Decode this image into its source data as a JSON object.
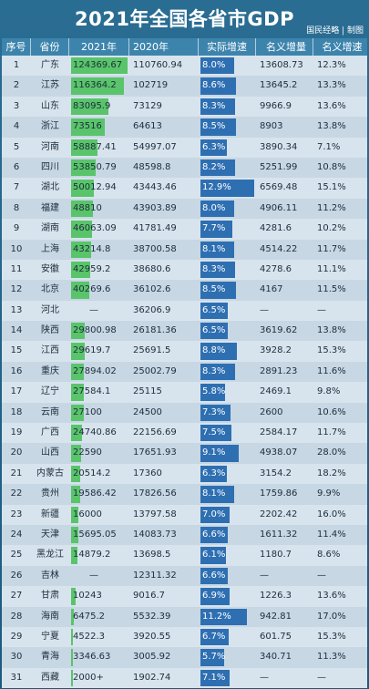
{
  "title": "2021年全国各省市GDP",
  "credit": "国民经略 | 制图",
  "headers": [
    "序号",
    "省份",
    "2021年",
    "2020年",
    "实际增速",
    "名义增量",
    "名义增速"
  ],
  "chart_data": {
    "type": "table",
    "title": "2021年全国各省市GDP",
    "columns": [
      "序号",
      "省份",
      "2021年",
      "2020年",
      "实际增速",
      "名义增量",
      "名义增速"
    ],
    "rows": [
      {
        "rank": "1",
        "province": "广东",
        "y2021": "124369.67",
        "y2020": "110760.94",
        "real": "8.0%",
        "nom_inc": "13608.73",
        "nom_rate": "12.3%",
        "v21": 124369.67,
        "rate": 8.0
      },
      {
        "rank": "2",
        "province": "江苏",
        "y2021": "116364.2",
        "y2020": "102719",
        "real": "8.6%",
        "nom_inc": "13645.2",
        "nom_rate": "13.3%",
        "v21": 116364.2,
        "rate": 8.6
      },
      {
        "rank": "3",
        "province": "山东",
        "y2021": "83095.9",
        "y2020": "73129",
        "real": "8.3%",
        "nom_inc": "9966.9",
        "nom_rate": "13.6%",
        "v21": 83095.9,
        "rate": 8.3
      },
      {
        "rank": "4",
        "province": "浙江",
        "y2021": "73516",
        "y2020": "64613",
        "real": "8.5%",
        "nom_inc": "8903",
        "nom_rate": "13.8%",
        "v21": 73516,
        "rate": 8.5
      },
      {
        "rank": "5",
        "province": "河南",
        "y2021": "58887.41",
        "y2020": "54997.07",
        "real": "6.3%",
        "nom_inc": "3890.34",
        "nom_rate": "7.1%",
        "v21": 58887.41,
        "rate": 6.3
      },
      {
        "rank": "6",
        "province": "四川",
        "y2021": "53850.79",
        "y2020": "48598.8",
        "real": "8.2%",
        "nom_inc": "5251.99",
        "nom_rate": "10.8%",
        "v21": 53850.79,
        "rate": 8.2
      },
      {
        "rank": "7",
        "province": "湖北",
        "y2021": "50012.94",
        "y2020": "43443.46",
        "real": "12.9%",
        "nom_inc": "6569.48",
        "nom_rate": "15.1%",
        "v21": 50012.94,
        "rate": 12.9
      },
      {
        "rank": "8",
        "province": "福建",
        "y2021": "48810",
        "y2020": "43903.89",
        "real": "8.0%",
        "nom_inc": "4906.11",
        "nom_rate": "11.2%",
        "v21": 48810,
        "rate": 8.0
      },
      {
        "rank": "9",
        "province": "湖南",
        "y2021": "46063.09",
        "y2020": "41781.49",
        "real": "7.7%",
        "nom_inc": "4281.6",
        "nom_rate": "10.2%",
        "v21": 46063.09,
        "rate": 7.7
      },
      {
        "rank": "10",
        "province": "上海",
        "y2021": "43214.8",
        "y2020": "38700.58",
        "real": "8.1%",
        "nom_inc": "4514.22",
        "nom_rate": "11.7%",
        "v21": 43214.8,
        "rate": 8.1
      },
      {
        "rank": "11",
        "province": "安徽",
        "y2021": "42959.2",
        "y2020": "38680.6",
        "real": "8.3%",
        "nom_inc": "4278.6",
        "nom_rate": "11.1%",
        "v21": 42959.2,
        "rate": 8.3
      },
      {
        "rank": "12",
        "province": "北京",
        "y2021": "40269.6",
        "y2020": "36102.6",
        "real": "8.5%",
        "nom_inc": "4167",
        "nom_rate": "11.5%",
        "v21": 40269.6,
        "rate": 8.5
      },
      {
        "rank": "13",
        "province": "河北",
        "y2021": "—",
        "y2020": "36206.9",
        "real": "6.5%",
        "nom_inc": "—",
        "nom_rate": "—",
        "v21": null,
        "rate": 6.5
      },
      {
        "rank": "14",
        "province": "陕西",
        "y2021": "29800.98",
        "y2020": "26181.36",
        "real": "6.5%",
        "nom_inc": "3619.62",
        "nom_rate": "13.8%",
        "v21": 29800.98,
        "rate": 6.5
      },
      {
        "rank": "15",
        "province": "江西",
        "y2021": "29619.7",
        "y2020": "25691.5",
        "real": "8.8%",
        "nom_inc": "3928.2",
        "nom_rate": "15.3%",
        "v21": 29619.7,
        "rate": 8.8
      },
      {
        "rank": "16",
        "province": "重庆",
        "y2021": "27894.02",
        "y2020": "25002.79",
        "real": "8.3%",
        "nom_inc": "2891.23",
        "nom_rate": "11.6%",
        "v21": 27894.02,
        "rate": 8.3
      },
      {
        "rank": "17",
        "province": "辽宁",
        "y2021": "27584.1",
        "y2020": "25115",
        "real": "5.8%",
        "nom_inc": "2469.1",
        "nom_rate": "9.8%",
        "v21": 27584.1,
        "rate": 5.8
      },
      {
        "rank": "18",
        "province": "云南",
        "y2021": "27100",
        "y2020": "24500",
        "real": "7.3%",
        "nom_inc": "2600",
        "nom_rate": "10.6%",
        "v21": 27100,
        "rate": 7.3
      },
      {
        "rank": "19",
        "province": "广西",
        "y2021": "24740.86",
        "y2020": "22156.69",
        "real": "7.5%",
        "nom_inc": "2584.17",
        "nom_rate": "11.7%",
        "v21": 24740.86,
        "rate": 7.5
      },
      {
        "rank": "20",
        "province": "山西",
        "y2021": "22590",
        "y2020": "17651.93",
        "real": "9.1%",
        "nom_inc": "4938.07",
        "nom_rate": "28.0%",
        "v21": 22590,
        "rate": 9.1
      },
      {
        "rank": "21",
        "province": "内蒙古",
        "y2021": "20514.2",
        "y2020": "17360",
        "real": "6.3%",
        "nom_inc": "3154.2",
        "nom_rate": "18.2%",
        "v21": 20514.2,
        "rate": 6.3
      },
      {
        "rank": "22",
        "province": "贵州",
        "y2021": "19586.42",
        "y2020": "17826.56",
        "real": "8.1%",
        "nom_inc": "1759.86",
        "nom_rate": "9.9%",
        "v21": 19586.42,
        "rate": 8.1
      },
      {
        "rank": "23",
        "province": "新疆",
        "y2021": "16000",
        "y2020": "13797.58",
        "real": "7.0%",
        "nom_inc": "2202.42",
        "nom_rate": "16.0%",
        "v21": 16000,
        "rate": 7.0
      },
      {
        "rank": "24",
        "province": "天津",
        "y2021": "15695.05",
        "y2020": "14083.73",
        "real": "6.6%",
        "nom_inc": "1611.32",
        "nom_rate": "11.4%",
        "v21": 15695.05,
        "rate": 6.6
      },
      {
        "rank": "25",
        "province": "黑龙江",
        "y2021": "14879.2",
        "y2020": "13698.5",
        "real": "6.1%",
        "nom_inc": "1180.7",
        "nom_rate": "8.6%",
        "v21": 14879.2,
        "rate": 6.1
      },
      {
        "rank": "26",
        "province": "吉林",
        "y2021": "—",
        "y2020": "12311.32",
        "real": "6.6%",
        "nom_inc": "—",
        "nom_rate": "—",
        "v21": null,
        "rate": 6.6
      },
      {
        "rank": "27",
        "province": "甘肃",
        "y2021": "10243",
        "y2020": "9016.7",
        "real": "6.9%",
        "nom_inc": "1226.3",
        "nom_rate": "13.6%",
        "v21": 10243,
        "rate": 6.9
      },
      {
        "rank": "28",
        "province": "海南",
        "y2021": "6475.2",
        "y2020": "5532.39",
        "real": "11.2%",
        "nom_inc": "942.81",
        "nom_rate": "17.0%",
        "v21": 6475.2,
        "rate": 11.2
      },
      {
        "rank": "29",
        "province": "宁夏",
        "y2021": "4522.3",
        "y2020": "3920.55",
        "real": "6.7%",
        "nom_inc": "601.75",
        "nom_rate": "15.3%",
        "v21": 4522.3,
        "rate": 6.7
      },
      {
        "rank": "30",
        "province": "青海",
        "y2021": "3346.63",
        "y2020": "3005.92",
        "real": "5.7%",
        "nom_inc": "340.71",
        "nom_rate": "11.3%",
        "v21": 3346.63,
        "rate": 5.7
      },
      {
        "rank": "31",
        "province": "西藏",
        "y2021": "2000+",
        "y2020": "1902.74",
        "real": "7.1%",
        "nom_inc": "—",
        "nom_rate": "—",
        "v21": 2000,
        "rate": 7.1
      }
    ],
    "v21_max": 124369.67,
    "rate_max": 12.9
  },
  "colors": {
    "bg": "#1f5f86",
    "header": "#3d84ad",
    "bar_2021": "#59c46a",
    "bar_rate": "#2e6fb2"
  }
}
